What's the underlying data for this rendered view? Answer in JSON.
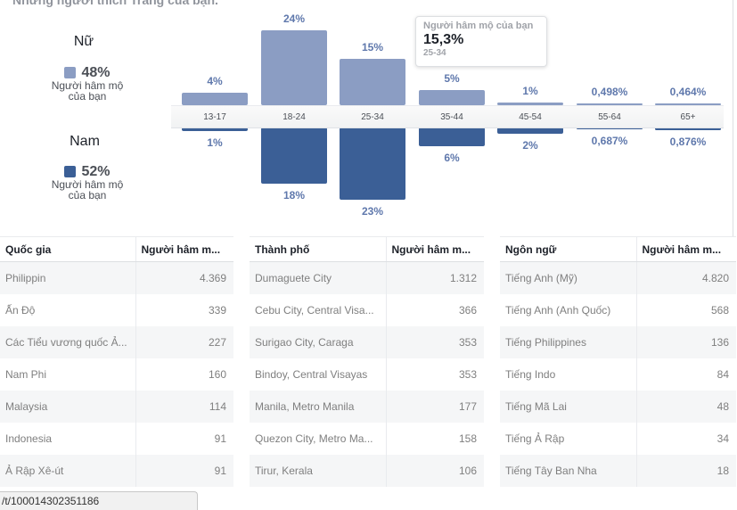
{
  "title": "Những người thích Trang của bạn.",
  "legend": {
    "female": {
      "label": "Nữ",
      "pct": "48%",
      "sub": "Người hâm mộ của bạn",
      "color": "#8b9dc3"
    },
    "male": {
      "label": "Nam",
      "pct": "52%",
      "sub": "Người hâm mộ của bạn",
      "color": "#3b5f96"
    }
  },
  "chart_data": {
    "type": "bar",
    "categories": [
      "13-17",
      "18-24",
      "25-34",
      "35-44",
      "45-54",
      "55-64",
      "65+"
    ],
    "series": [
      {
        "name": "Nữ",
        "values": [
          4,
          24,
          15,
          5,
          1,
          0.498,
          0.464
        ],
        "labels": [
          "4%",
          "24%",
          "15%",
          "5%",
          "1%",
          "0,498%",
          "0,464%"
        ]
      },
      {
        "name": "Nam",
        "values": [
          1,
          18,
          23,
          6,
          2,
          0.687,
          0.876
        ],
        "labels": [
          "1%",
          "18%",
          "23%",
          "6%",
          "2%",
          "0,687%",
          "0,876%"
        ]
      }
    ]
  },
  "tooltip": {
    "title": "Người hâm mộ của bạn",
    "value": "15,3%",
    "range": "25-34"
  },
  "tables": [
    {
      "headers": [
        "Quốc gia",
        "Người hâm m..."
      ],
      "rows": [
        [
          "Philippin",
          "4.369"
        ],
        [
          "Ấn Độ",
          "339"
        ],
        [
          "Các Tiểu vương quốc Ả...",
          "227"
        ],
        [
          "Nam Phi",
          "160"
        ],
        [
          "Malaysia",
          "114"
        ],
        [
          "Indonesia",
          "91"
        ],
        [
          "Ả Rập Xê-út",
          "91"
        ]
      ]
    },
    {
      "headers": [
        "Thành phố",
        "Người hâm m..."
      ],
      "rows": [
        [
          "Dumaguete City",
          "1.312"
        ],
        [
          "Cebu City, Central Visa...",
          "366"
        ],
        [
          "Surigao City, Caraga",
          "353"
        ],
        [
          "Bindoy, Central Visayas",
          "353"
        ],
        [
          "Manila, Metro Manila",
          "177"
        ],
        [
          "Quezon City, Metro Ma...",
          "158"
        ],
        [
          "Tirur, Kerala",
          "106"
        ]
      ]
    },
    {
      "headers": [
        "Ngôn ngữ",
        "Người hâm m..."
      ],
      "rows": [
        [
          "Tiếng Anh (Mỹ)",
          "4.820"
        ],
        [
          "Tiếng Anh (Anh Quốc)",
          "568"
        ],
        [
          "Tiếng Philippines",
          "136"
        ],
        [
          "Tiếng Indo",
          "84"
        ],
        [
          "Tiếng Mã Lai",
          "48"
        ],
        [
          "Tiếng Ả Rập",
          "34"
        ],
        [
          "Tiếng Tây Ban Nha",
          "18"
        ]
      ]
    }
  ],
  "status_url": "/t/100014302351186"
}
